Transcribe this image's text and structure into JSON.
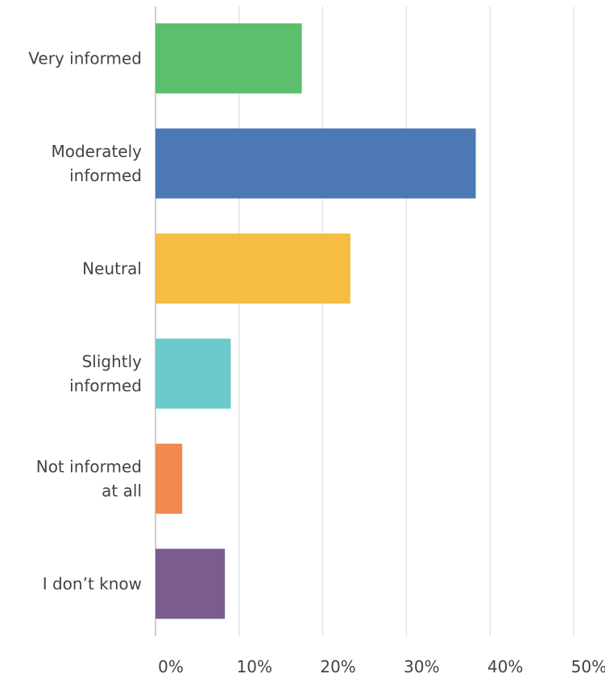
{
  "chart_data": {
    "type": "bar",
    "orientation": "horizontal",
    "categories": [
      [
        "Very informed"
      ],
      [
        "Moderately",
        "informed"
      ],
      [
        "Neutral"
      ],
      [
        "Slightly",
        "informed"
      ],
      [
        "Not informed",
        "at all"
      ],
      [
        "I don’t know"
      ]
    ],
    "values": [
      17.5,
      38.3,
      23.3,
      9.0,
      3.2,
      8.3
    ],
    "colors": [
      "#5bbf6e",
      "#4c79b4",
      "#f5bd41",
      "#6ac9cb",
      "#f18b4d",
      "#7a5c8f"
    ],
    "xlim": [
      0,
      54
    ],
    "xticks": [
      0,
      10,
      20,
      30,
      40,
      50
    ],
    "xtick_labels": [
      "0%",
      "10%",
      "20%",
      "30%",
      "40%",
      "50%"
    ],
    "grid": "vertical"
  }
}
